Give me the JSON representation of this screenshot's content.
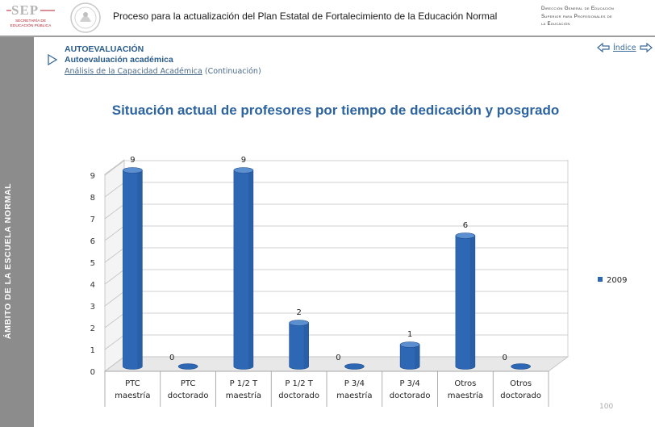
{
  "header": {
    "logo_text": "SEP",
    "logo_sub": "Secretaría de Educación Pública",
    "title": "Proceso para la actualización del Plan Estatal de Fortalecimiento de la Educación Normal",
    "dir_line1": "Dirección General de Educación",
    "dir_line2": "Superior para Profesionales de",
    "dir_line3": "la Educación"
  },
  "sidebar": {
    "label": "Ámbito de la escuela normal"
  },
  "section": {
    "title": "AUTOEVALUACIÓN",
    "subtitle": "Autoevaluación académica",
    "link": "Análisis de la Capacidad Académica",
    "link_suffix": "(Continuación)"
  },
  "nav": {
    "index_label": "Índice"
  },
  "page_number": "100",
  "colors": {
    "bar": "#2e68b4",
    "title": "#2d64a0",
    "section": "#2b5d8c",
    "sidebar": "#8c8c8c"
  },
  "chart_data": {
    "type": "bar",
    "title": "Situación actual de profesores por tiempo de dedicación y posgrado",
    "categories": [
      [
        "PTC",
        "maestría"
      ],
      [
        "PTC",
        "doctorado"
      ],
      [
        "P 1/2 T",
        "maestría"
      ],
      [
        "P 1/2 T",
        "doctorado"
      ],
      [
        "P 3/4",
        "maestría"
      ],
      [
        "P 3/4",
        "doctorado"
      ],
      [
        "Otros",
        "maestría"
      ],
      [
        "Otros",
        "doctorado"
      ]
    ],
    "series": [
      {
        "name": "2009",
        "values": [
          9,
          0,
          9,
          2,
          0,
          1,
          6,
          0
        ]
      }
    ],
    "ylim": [
      0,
      9
    ],
    "yticks": [
      0,
      1,
      2,
      3,
      4,
      5,
      6,
      7,
      8,
      9
    ],
    "grid": true,
    "legend": "right",
    "data_labels": true
  }
}
